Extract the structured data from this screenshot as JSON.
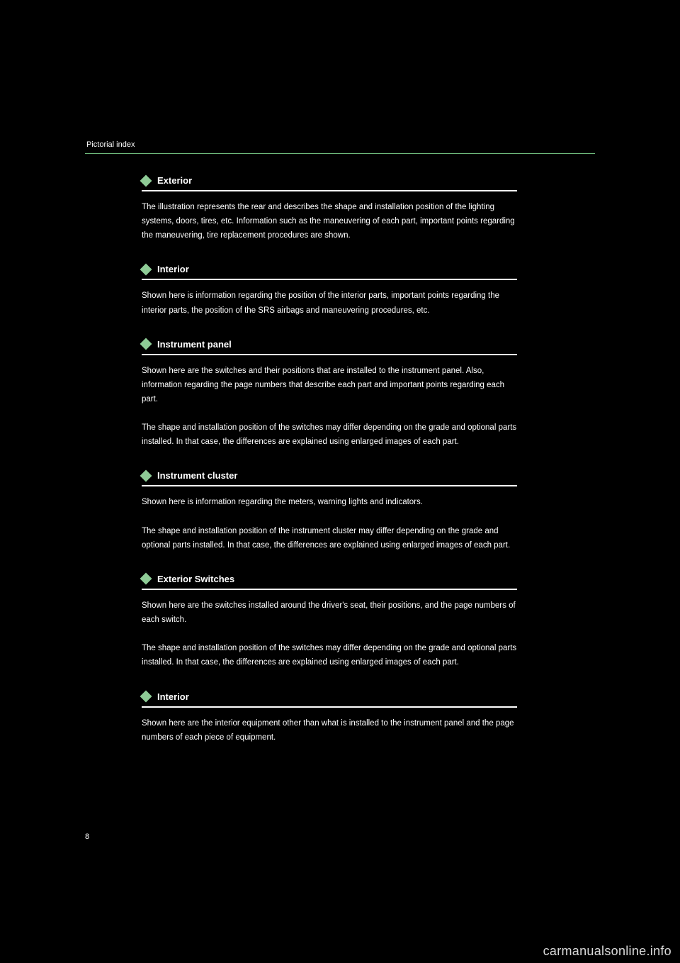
{
  "page": {
    "number": "8",
    "header": "Pictorial index",
    "watermark": "carmanualsonline.info"
  },
  "colors": {
    "background": "#000000",
    "text": "#ffffff",
    "accent_green": "#8ecb96",
    "rule_green": "#6db87a",
    "section_rule": "#ffffff"
  },
  "typography": {
    "header_fontsize": 11,
    "title_fontsize": 13,
    "body_fontsize": 11.5,
    "watermark_fontsize": 18
  },
  "sections": [
    {
      "title": "Exterior",
      "body": "The illustration represents the rear and describes the shape and installation position of the lighting systems, doors, tires, etc. Information such as the maneuvering of each part, important points regarding the maneuvering, tire replacement procedures are shown."
    },
    {
      "title": "Interior",
      "body": "Shown here is information regarding the position of the interior parts, important points regarding the interior parts, the position of the SRS airbags and maneuvering procedures, etc."
    },
    {
      "title": "Instrument panel",
      "body": "Shown here are the switches and their positions that are installed to the instrument panel. Also, information regarding the page numbers that describe each part and important points regarding each part.\n\nThe shape and installation position of the switches may differ depending on the grade and optional parts installed. In that case, the differences are explained using enlarged images of each part."
    },
    {
      "title": "Instrument cluster",
      "body": "Shown here is information regarding the meters, warning lights and indicators.\n\nThe shape and installation position of the instrument cluster may differ depending on the grade and optional parts installed. In that case, the differences are explained using enlarged images of each part."
    },
    {
      "title": "Exterior Switches",
      "body": "Shown here are the switches installed around the driver's seat, their positions, and the page numbers of each switch.\n\nThe shape and installation position of the switches may differ depending on the grade and optional parts installed. In that case, the differences are explained using enlarged images of each part."
    },
    {
      "title": "Interior",
      "body": "Shown here are the interior equipment other than what is installed to the instrument panel and the page numbers of each piece of equipment."
    }
  ]
}
